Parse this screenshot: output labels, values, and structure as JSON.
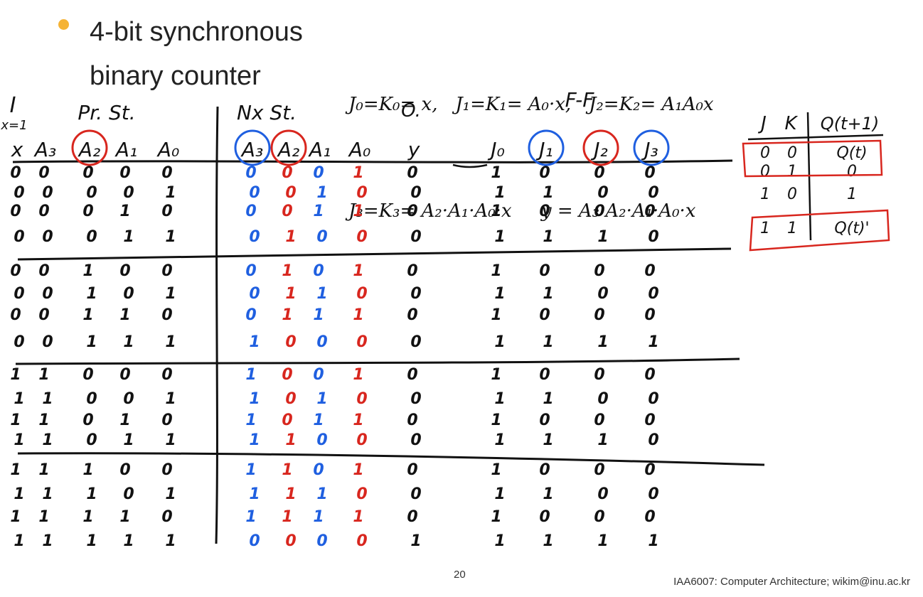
{
  "slide": {
    "title_line1": "4-bit synchronous",
    "title_line2": "binary counter",
    "page_number": "20",
    "footer": "IAA6007: Computer Architecture; wikim@inu.ac.kr",
    "bullet_color": "#F5B335"
  },
  "equations": {
    "line1": "J₀=K₀= x,   J₁=K₁= A₀·x,   J₂=K₂= A₁A₀x",
    "line2": "J₃=K₃= A₂·A₁·A₀·x     y = A₃·A₂·A₁·A₀·x"
  },
  "notes": {
    "input_label": "I",
    "x_eq": "x=1",
    "present_state": "Pr. St.",
    "next_state": "Nx St.",
    "output_label": "O.",
    "ff_label": "F-F"
  },
  "headers": {
    "x": "x",
    "a3": "A₃",
    "a2": "A₂",
    "a1": "A₁",
    "a0": "A₀",
    "na3": "A₃",
    "na2": "A₂",
    "na1": "A₁",
    "na0": "A₀",
    "y": "y",
    "j0": "J₀",
    "j1": "J₁",
    "j2": "J₂",
    "j3": "J₃"
  },
  "rows": [
    [
      "0",
      "0",
      "0",
      "0",
      "0",
      "0",
      "0",
      "0",
      "1",
      "0",
      "1",
      "0",
      "0",
      "0"
    ],
    [
      "0",
      "0",
      "0",
      "0",
      "1",
      "0",
      "0",
      "1",
      "0",
      "0",
      "1",
      "1",
      "0",
      "0"
    ],
    [
      "0",
      "0",
      "0",
      "1",
      "0",
      "0",
      "0",
      "1",
      "1",
      "0",
      "1",
      "0",
      "0",
      "0"
    ],
    [
      "0",
      "0",
      "0",
      "1",
      "1",
      "0",
      "1",
      "0",
      "0",
      "0",
      "1",
      "1",
      "1",
      "0"
    ],
    [
      "0",
      "0",
      "1",
      "0",
      "0",
      "0",
      "1",
      "0",
      "1",
      "0",
      "1",
      "0",
      "0",
      "0"
    ],
    [
      "0",
      "0",
      "1",
      "0",
      "1",
      "0",
      "1",
      "1",
      "0",
      "0",
      "1",
      "1",
      "0",
      "0"
    ],
    [
      "0",
      "0",
      "1",
      "1",
      "0",
      "0",
      "1",
      "1",
      "1",
      "0",
      "1",
      "0",
      "0",
      "0"
    ],
    [
      "0",
      "0",
      "1",
      "1",
      "1",
      "1",
      "0",
      "0",
      "0",
      "0",
      "1",
      "1",
      "1",
      "1"
    ],
    [
      "1",
      "1",
      "0",
      "0",
      "0",
      "1",
      "0",
      "0",
      "1",
      "0",
      "1",
      "0",
      "0",
      "0"
    ],
    [
      "1",
      "1",
      "0",
      "0",
      "1",
      "1",
      "0",
      "1",
      "0",
      "0",
      "1",
      "1",
      "0",
      "0"
    ],
    [
      "1",
      "1",
      "0",
      "1",
      "0",
      "1",
      "0",
      "1",
      "1",
      "0",
      "1",
      "0",
      "0",
      "0"
    ],
    [
      "1",
      "1",
      "0",
      "1",
      "1",
      "1",
      "1",
      "0",
      "0",
      "0",
      "1",
      "1",
      "1",
      "0"
    ],
    [
      "1",
      "1",
      "1",
      "0",
      "0",
      "1",
      "1",
      "0",
      "1",
      "0",
      "1",
      "0",
      "0",
      "0"
    ],
    [
      "1",
      "1",
      "1",
      "0",
      "1",
      "1",
      "1",
      "1",
      "0",
      "0",
      "1",
      "1",
      "0",
      "0"
    ],
    [
      "1",
      "1",
      "1",
      "1",
      "0",
      "1",
      "1",
      "1",
      "1",
      "0",
      "1",
      "0",
      "0",
      "0"
    ],
    [
      "1",
      "1",
      "1",
      "1",
      "1",
      "0",
      "0",
      "0",
      "0",
      "1",
      "1",
      "1",
      "1",
      "1"
    ]
  ],
  "jk_table": {
    "header_j": "J",
    "header_k": "K",
    "header_q": "Q(t+1)",
    "rows": [
      [
        "0",
        "0",
        "Q(t)"
      ],
      [
        "0",
        "1",
        "0"
      ],
      [
        "1",
        "0",
        "1"
      ],
      [
        "1",
        "1",
        "Q(t)'"
      ]
    ]
  },
  "colors": {
    "ink": "#111111",
    "blue": "#1F5FE0",
    "red": "#D8261E"
  }
}
